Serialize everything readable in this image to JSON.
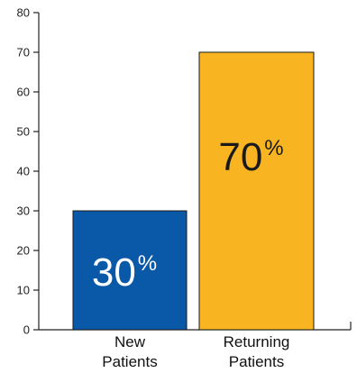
{
  "chart_data": {
    "type": "bar",
    "categories": [
      [
        "New",
        "Patients"
      ],
      [
        "Returning",
        "Patients"
      ]
    ],
    "values": [
      30,
      70
    ],
    "data_labels": [
      {
        "number": "30",
        "suffix": "%"
      },
      {
        "number": "70",
        "suffix": "%"
      }
    ],
    "ylim": [
      0,
      80
    ],
    "yticks": [
      0,
      10,
      20,
      30,
      40,
      50,
      60,
      70,
      80
    ],
    "grid": false,
    "legend": "none",
    "title": "",
    "xlabel": "",
    "ylabel": ""
  },
  "colors": {
    "bars": [
      "#0a58a8",
      "#f8b521"
    ],
    "label_on_bar": [
      "#ffffff",
      "#1a1a1a"
    ],
    "axis": "#222222"
  }
}
